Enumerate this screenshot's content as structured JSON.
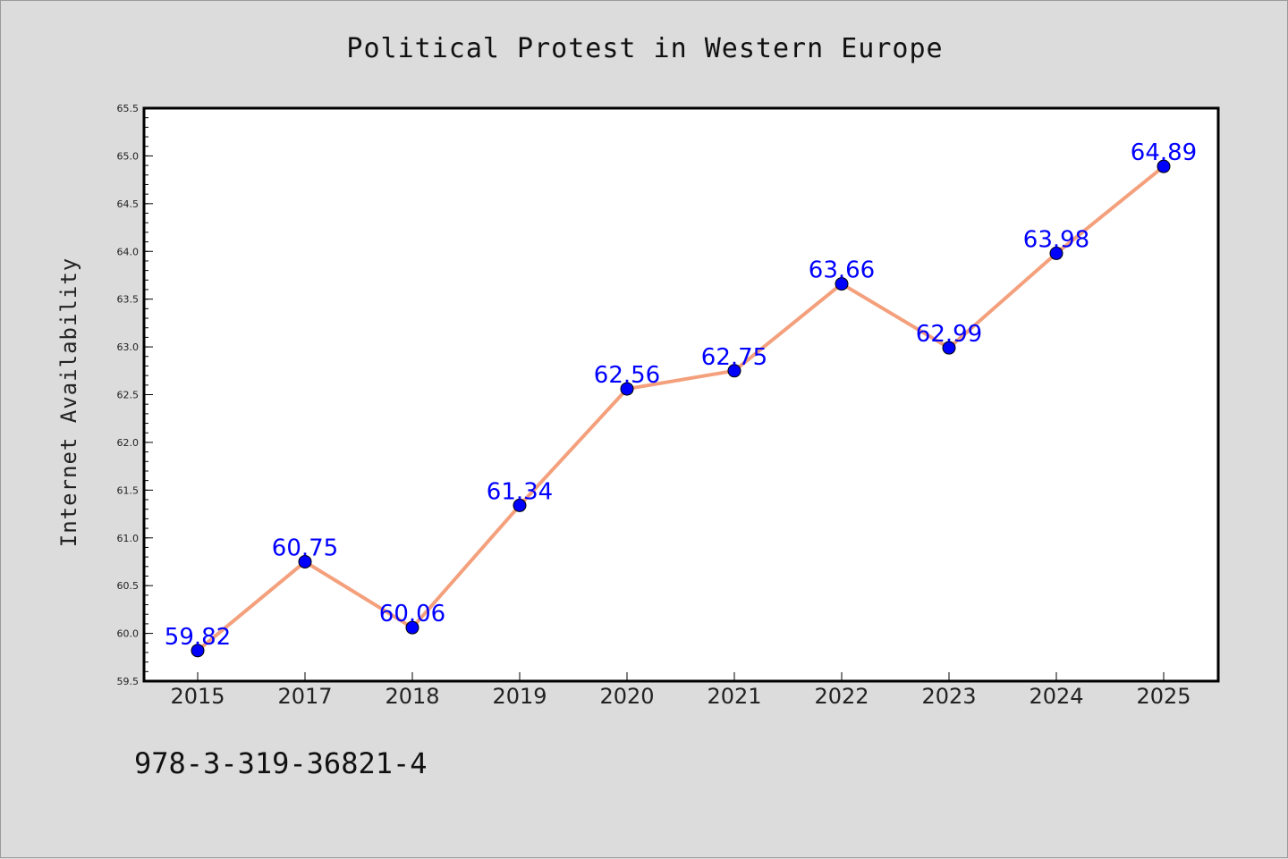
{
  "chart_data": {
    "type": "line",
    "title": "Political Protest in Western Europe",
    "xlabel": "",
    "ylabel": "Internet Availability",
    "categories": [
      "2015",
      "2017",
      "2018",
      "2019",
      "2020",
      "2021",
      "2022",
      "2023",
      "2024",
      "2025"
    ],
    "series": [
      {
        "values": [
          59.82,
          60.75,
          60.06,
          61.34,
          62.56,
          62.75,
          63.66,
          62.99,
          63.98,
          64.89
        ],
        "line_color": "#f4a07c",
        "marker_color": "#0000ff"
      }
    ],
    "data_labels": [
      "59.82",
      "60.75",
      "60.06",
      "61.34",
      "62.56",
      "62.75",
      "63.66",
      "62.99",
      "63.98",
      "64.89"
    ],
    "ylim": [
      59.5,
      65.5
    ],
    "yticks": [
      "59.5",
      "60.0",
      "60.5",
      "61.0",
      "61.5",
      "62.0",
      "62.5",
      "63.0",
      "63.5",
      "64.0",
      "64.5",
      "65.0",
      "65.5"
    ],
    "grid": false,
    "legend": "none"
  },
  "footer": {
    "text": "978-3-319-36821-4"
  },
  "colors": {
    "figure_background": "#dcdcdc",
    "plot_background": "#ffffff",
    "line": "#f4a07c",
    "marker": "#0000ff",
    "data_label": "#0000ff"
  }
}
